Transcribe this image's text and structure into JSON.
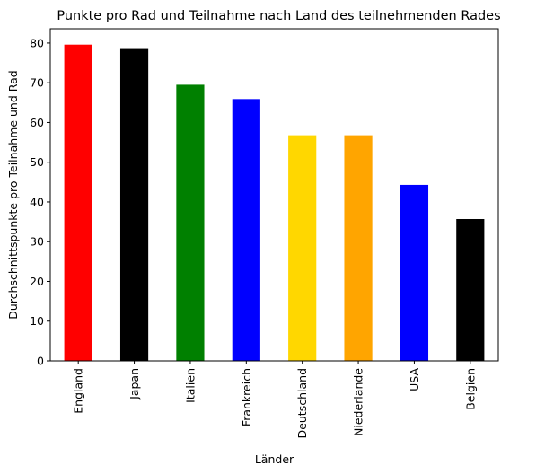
{
  "chart_data": {
    "type": "bar",
    "title": "Punkte pro Rad und Teilnahme nach Land des teilnehmenden Rades",
    "xlabel": "Länder",
    "ylabel": "Durchschnittspunkte pro Teilnahme und Rad",
    "categories": [
      "England",
      "Japan",
      "Italien",
      "Frankreich",
      "Deutschland",
      "Niederlande",
      "USA",
      "Belgien"
    ],
    "values": [
      79.6,
      78.5,
      69.5,
      65.9,
      56.8,
      56.8,
      44.3,
      35.7
    ],
    "colors": [
      "#ff0000",
      "#000000",
      "#008000",
      "#0000ff",
      "#ffd700",
      "#ffa500",
      "#0000ff",
      "#000000"
    ],
    "ylim": [
      0,
      83.6
    ],
    "yticks": [
      0,
      10,
      20,
      30,
      40,
      50,
      60,
      70,
      80
    ],
    "grid": false,
    "legend": "none"
  }
}
